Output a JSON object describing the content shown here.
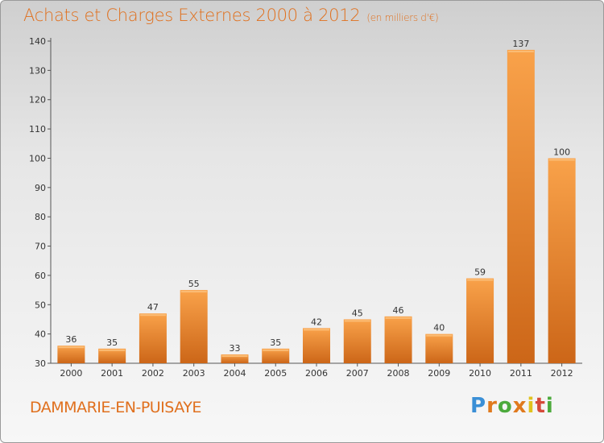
{
  "header": {
    "title": "Achats et Charges Externes 2000 à 2012",
    "subtitle": "(en milliers d'€)"
  },
  "footer": {
    "commune": "DAMMARIE-EN-PUISAYE",
    "logo_text": "Proxiti"
  },
  "colors": {
    "bar_top": "#f9a24a",
    "bar_bottom": "#cc6618",
    "title": "#e0701e"
  },
  "chart_data": {
    "type": "bar",
    "title": "Achats et Charges Externes 2000 à 2012",
    "subtitle": "(en milliers d'€)",
    "categories": [
      "2000",
      "2001",
      "2002",
      "2003",
      "2004",
      "2005",
      "2006",
      "2007",
      "2008",
      "2009",
      "2010",
      "2011",
      "2012"
    ],
    "values": [
      36,
      35,
      47,
      55,
      33,
      35,
      42,
      45,
      46,
      40,
      59,
      137,
      100
    ],
    "ylim": [
      30,
      140
    ],
    "yticks": [
      30,
      40,
      50,
      60,
      70,
      80,
      90,
      100,
      110,
      120,
      130,
      140
    ],
    "grid": false,
    "legend": "none"
  }
}
